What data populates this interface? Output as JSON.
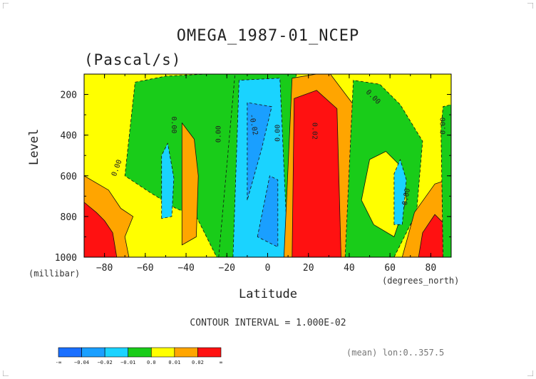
{
  "chart_data": {
    "type": "contour",
    "title": "OMEGA_1987-01_NCEP",
    "units": "(Pascal/s)",
    "xlabel": "Latitude",
    "x_units": "(degrees_north)",
    "ylabel": "Level",
    "y_units": "(millibar)",
    "xlim": [
      -90,
      90
    ],
    "ylim": [
      1000,
      100
    ],
    "x_ticks": [
      -80,
      -60,
      -40,
      -20,
      0,
      20,
      40,
      60,
      80
    ],
    "y_ticks": [
      200,
      400,
      600,
      800,
      1000
    ],
    "contour_interval_label": "CONTOUR INTERVAL = 1.000E-02",
    "mean_label": "(mean) lon:0..357.5",
    "colorbar": {
      "colors": [
        "#1a6fff",
        "#1a9fff",
        "#1ad3ff",
        "#19cc19",
        "#ffff00",
        "#ffa500",
        "#ff1111"
      ],
      "labels": [
        "-∞",
        "−0.04",
        "−0.02",
        "−0.01",
        "0.0",
        "0.01",
        "0.02",
        "∞"
      ]
    },
    "contour_labels": [
      {
        "text": "0.00",
        "lat": -73,
        "lev": 565,
        "rot": -70
      },
      {
        "text": "0.00",
        "lat": -47,
        "lev": 350,
        "rot": 90
      },
      {
        "text": "0.00",
        "lat": -23,
        "lev": 395,
        "rot": -90
      },
      {
        "text": "-0.02",
        "lat": -8,
        "lev": 350,
        "rot": 80
      },
      {
        "text": "0.00",
        "lat": 6,
        "lev": 390,
        "rot": -90
      },
      {
        "text": "0.02",
        "lat": 22,
        "lev": 380,
        "rot": 90
      },
      {
        "text": "0.00",
        "lat": 51,
        "lev": 220,
        "rot": 45
      },
      {
        "text": "0.00",
        "lat": 69,
        "lev": 705,
        "rot": -80
      },
      {
        "text": "0.00",
        "lat": 87,
        "lev": 355,
        "rot": -90
      }
    ],
    "regions": [
      {
        "color": "#19cc19",
        "name": "negative-0.01-band",
        "pts": [
          [
            -65,
            140
          ],
          [
            -50,
            110
          ],
          [
            -30,
            100
          ],
          [
            -15,
            100
          ],
          [
            -10,
            1000
          ],
          [
            -25,
            1000
          ],
          [
            -35,
            800
          ],
          [
            -45,
            760
          ],
          [
            -58,
            680
          ],
          [
            -70,
            600
          ]
        ]
      },
      {
        "color": "#ffa500",
        "name": "positive-0.01-band",
        "pts": [
          [
            -84,
            1000
          ],
          [
            -90,
            1000
          ],
          [
            -90,
            600
          ],
          [
            -78,
            670
          ],
          [
            -72,
            760
          ],
          [
            -66,
            800
          ],
          [
            -70,
            900
          ],
          [
            -68,
            1000
          ]
        ]
      },
      {
        "color": "#ff1111",
        "name": "positive-0.02-core",
        "pts": [
          [
            -90,
            1000
          ],
          [
            -90,
            730
          ],
          [
            -84,
            780
          ],
          [
            -80,
            820
          ],
          [
            -76,
            880
          ],
          [
            -74,
            1000
          ]
        ]
      },
      {
        "color": "#ffa500",
        "name": "positive-0.01-band",
        "pts": [
          [
            -42,
            940
          ],
          [
            -42,
            340
          ],
          [
            -36,
            420
          ],
          [
            -34,
            600
          ],
          [
            -35,
            900
          ]
        ]
      },
      {
        "color": "#1ad3ff",
        "name": "negative-0.02-band",
        "pts": [
          [
            -52,
            810
          ],
          [
            -52,
            500
          ],
          [
            -49,
            440
          ],
          [
            -46,
            610
          ],
          [
            -47,
            800
          ]
        ]
      },
      {
        "color": "#19cc19",
        "name": "negative-0.01-band",
        "pts": [
          [
            -24,
            1000
          ],
          [
            -16,
            100
          ],
          [
            14,
            100
          ],
          [
            12,
            1000
          ]
        ]
      },
      {
        "color": "#1ad3ff",
        "name": "negative-0.02-band",
        "pts": [
          [
            -17,
            1000
          ],
          [
            -14,
            130
          ],
          [
            6,
            120
          ],
          [
            10,
            1000
          ]
        ]
      },
      {
        "color": "#1a9fff",
        "name": "negative-0.04-core",
        "pts": [
          [
            -10,
            720
          ],
          [
            -10,
            240
          ],
          [
            2,
            260
          ],
          [
            -3,
            470
          ]
        ]
      },
      {
        "color": "#1a9fff",
        "name": "negative-0.04-core",
        "pts": [
          [
            -5,
            900
          ],
          [
            1,
            600
          ],
          [
            5,
            620
          ],
          [
            5,
            950
          ]
        ]
      },
      {
        "color": "#ffa500",
        "name": "positive-0.01-band",
        "pts": [
          [
            8,
            1000
          ],
          [
            12,
            120
          ],
          [
            30,
            90
          ],
          [
            42,
            250
          ],
          [
            44,
            400
          ],
          [
            42,
            1000
          ]
        ]
      },
      {
        "color": "#ff1111",
        "name": "positive-0.02-core",
        "pts": [
          [
            12,
            1000
          ],
          [
            13,
            220
          ],
          [
            24,
            180
          ],
          [
            34,
            270
          ],
          [
            36,
            1000
          ]
        ]
      },
      {
        "color": "#19cc19",
        "name": "negative-0.01-band",
        "pts": [
          [
            38,
            1000
          ],
          [
            42,
            130
          ],
          [
            55,
            150
          ],
          [
            65,
            250
          ],
          [
            76,
            430
          ],
          [
            73,
            780
          ],
          [
            62,
            1000
          ]
        ]
      },
      {
        "color": "#ffff00",
        "name": "zero-band",
        "pts": [
          [
            46,
            720
          ],
          [
            50,
            520
          ],
          [
            58,
            480
          ],
          [
            66,
            560
          ],
          [
            68,
            720
          ],
          [
            62,
            900
          ],
          [
            52,
            840
          ]
        ]
      },
      {
        "color": "#1ad3ff",
        "name": "negative-0.02-band",
        "pts": [
          [
            62,
            840
          ],
          [
            62,
            590
          ],
          [
            65,
            520
          ],
          [
            68,
            620
          ],
          [
            66,
            840
          ]
        ]
      },
      {
        "color": "#ffa500",
        "name": "positive-0.01-band",
        "pts": [
          [
            66,
            1000
          ],
          [
            72,
            780
          ],
          [
            82,
            640
          ],
          [
            88,
            620
          ],
          [
            90,
            720
          ],
          [
            90,
            1000
          ]
        ]
      },
      {
        "color": "#ff1111",
        "name": "positive-0.02-core",
        "pts": [
          [
            74,
            1000
          ],
          [
            76,
            880
          ],
          [
            82,
            790
          ],
          [
            88,
            850
          ],
          [
            90,
            1000
          ]
        ]
      },
      {
        "color": "#19cc19",
        "name": "negative-0.01-band",
        "pts": [
          [
            86,
            1000
          ],
          [
            85,
            370
          ],
          [
            86,
            260
          ],
          [
            90,
            250
          ],
          [
            90,
            1000
          ]
        ]
      }
    ]
  }
}
